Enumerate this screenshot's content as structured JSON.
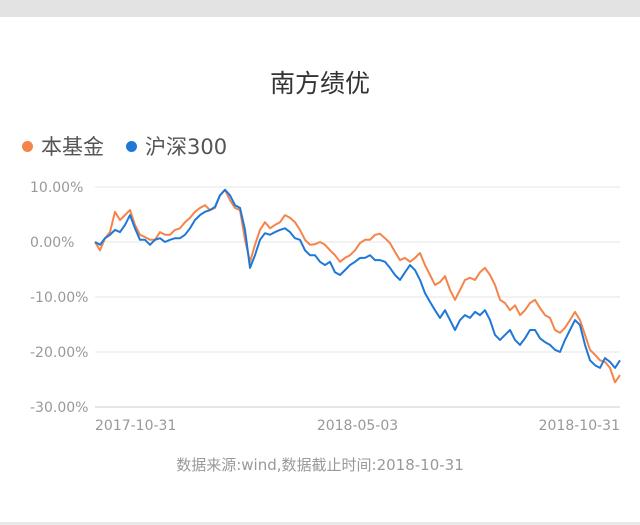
{
  "chart_data": {
    "type": "line",
    "title": "南方绩优",
    "ylim": [
      -30,
      10
    ],
    "yticks": [
      10,
      0,
      -10,
      -20,
      -30
    ],
    "ytick_labels": [
      "10.00%",
      "0.00%",
      "-10.00%",
      "-20.00%",
      "-30.00%"
    ],
    "xtick_labels": [
      "2017-10-31",
      "2018-05-03",
      "2018-10-31"
    ],
    "grid": true,
    "legend_position": "top-left",
    "series": [
      {
        "name": "本基金",
        "color": "#f5844a",
        "values": [
          0,
          -1.5,
          0.7,
          1.8,
          5.5,
          4.0,
          4.9,
          5.8,
          3.1,
          1.3,
          0.9,
          0.4,
          0.4,
          1.8,
          1.3,
          1.3,
          2.2,
          2.5,
          3.6,
          4.4,
          5.5,
          6.2,
          6.7,
          5.8,
          6.2,
          8.5,
          9.5,
          7.6,
          6.2,
          5.8,
          0.4,
          -3.6,
          -0.5,
          2.2,
          3.6,
          2.5,
          3.1,
          3.6,
          4.9,
          4.4,
          3.6,
          2.2,
          0.4,
          -0.5,
          -0.4,
          0,
          -0.5,
          -1.5,
          -2.4,
          -3.6,
          -2.9,
          -2.4,
          -1.5,
          -0.2,
          0.4,
          0.4,
          1.3,
          1.5,
          0.7,
          -0.2,
          -1.8,
          -3.3,
          -2.9,
          -3.6,
          -2.9,
          -2.0,
          -4.2,
          -6.0,
          -7.8,
          -7.3,
          -6.2,
          -8.7,
          -10.5,
          -8.7,
          -6.9,
          -6.5,
          -6.9,
          -5.5,
          -4.7,
          -6.0,
          -7.8,
          -10.5,
          -11.1,
          -12.4,
          -11.5,
          -13.3,
          -12.4,
          -11.1,
          -10.5,
          -12.0,
          -13.3,
          -13.8,
          -16.0,
          -16.5,
          -15.6,
          -14.2,
          -12.7,
          -14.2,
          -16.9,
          -19.6,
          -20.5,
          -21.5,
          -21.8,
          -22.9,
          -25.5,
          -24.2
        ]
      },
      {
        "name": "沪深300",
        "color": "#1f78d8",
        "values": [
          0,
          -0.5,
          0.7,
          1.3,
          2.2,
          1.8,
          3.1,
          4.9,
          2.5,
          0.4,
          0.4,
          -0.5,
          0.4,
          0.7,
          0,
          0.4,
          0.7,
          0.7,
          1.3,
          2.5,
          4.0,
          4.9,
          5.5,
          5.8,
          6.4,
          8.5,
          9.5,
          8.5,
          6.7,
          6.2,
          2.2,
          -4.7,
          -2.4,
          0.4,
          1.6,
          1.3,
          1.8,
          2.2,
          2.5,
          1.8,
          0.7,
          0.4,
          -1.5,
          -2.4,
          -2.4,
          -3.6,
          -4.2,
          -3.6,
          -5.5,
          -6.0,
          -5.1,
          -4.2,
          -3.6,
          -2.9,
          -2.9,
          -2.4,
          -3.3,
          -3.3,
          -3.6,
          -4.7,
          -6.0,
          -6.9,
          -5.5,
          -4.2,
          -5.1,
          -6.9,
          -9.3,
          -10.9,
          -12.4,
          -13.8,
          -12.4,
          -14.2,
          -16.0,
          -14.2,
          -13.3,
          -13.8,
          -12.7,
          -13.3,
          -12.4,
          -14.2,
          -16.9,
          -17.8,
          -16.9,
          -16.0,
          -17.8,
          -18.7,
          -17.5,
          -16.0,
          -16.0,
          -17.5,
          -18.2,
          -18.7,
          -19.6,
          -20.0,
          -17.8,
          -16.0,
          -14.2,
          -15.1,
          -18.7,
          -21.5,
          -22.4,
          -22.9,
          -21.1,
          -21.8,
          -22.9,
          -21.5
        ]
      }
    ]
  },
  "legend": {
    "fund": "本基金",
    "index": "沪深300"
  },
  "source_note": "数据来源:wind,数据截止时间:2018-10-31"
}
